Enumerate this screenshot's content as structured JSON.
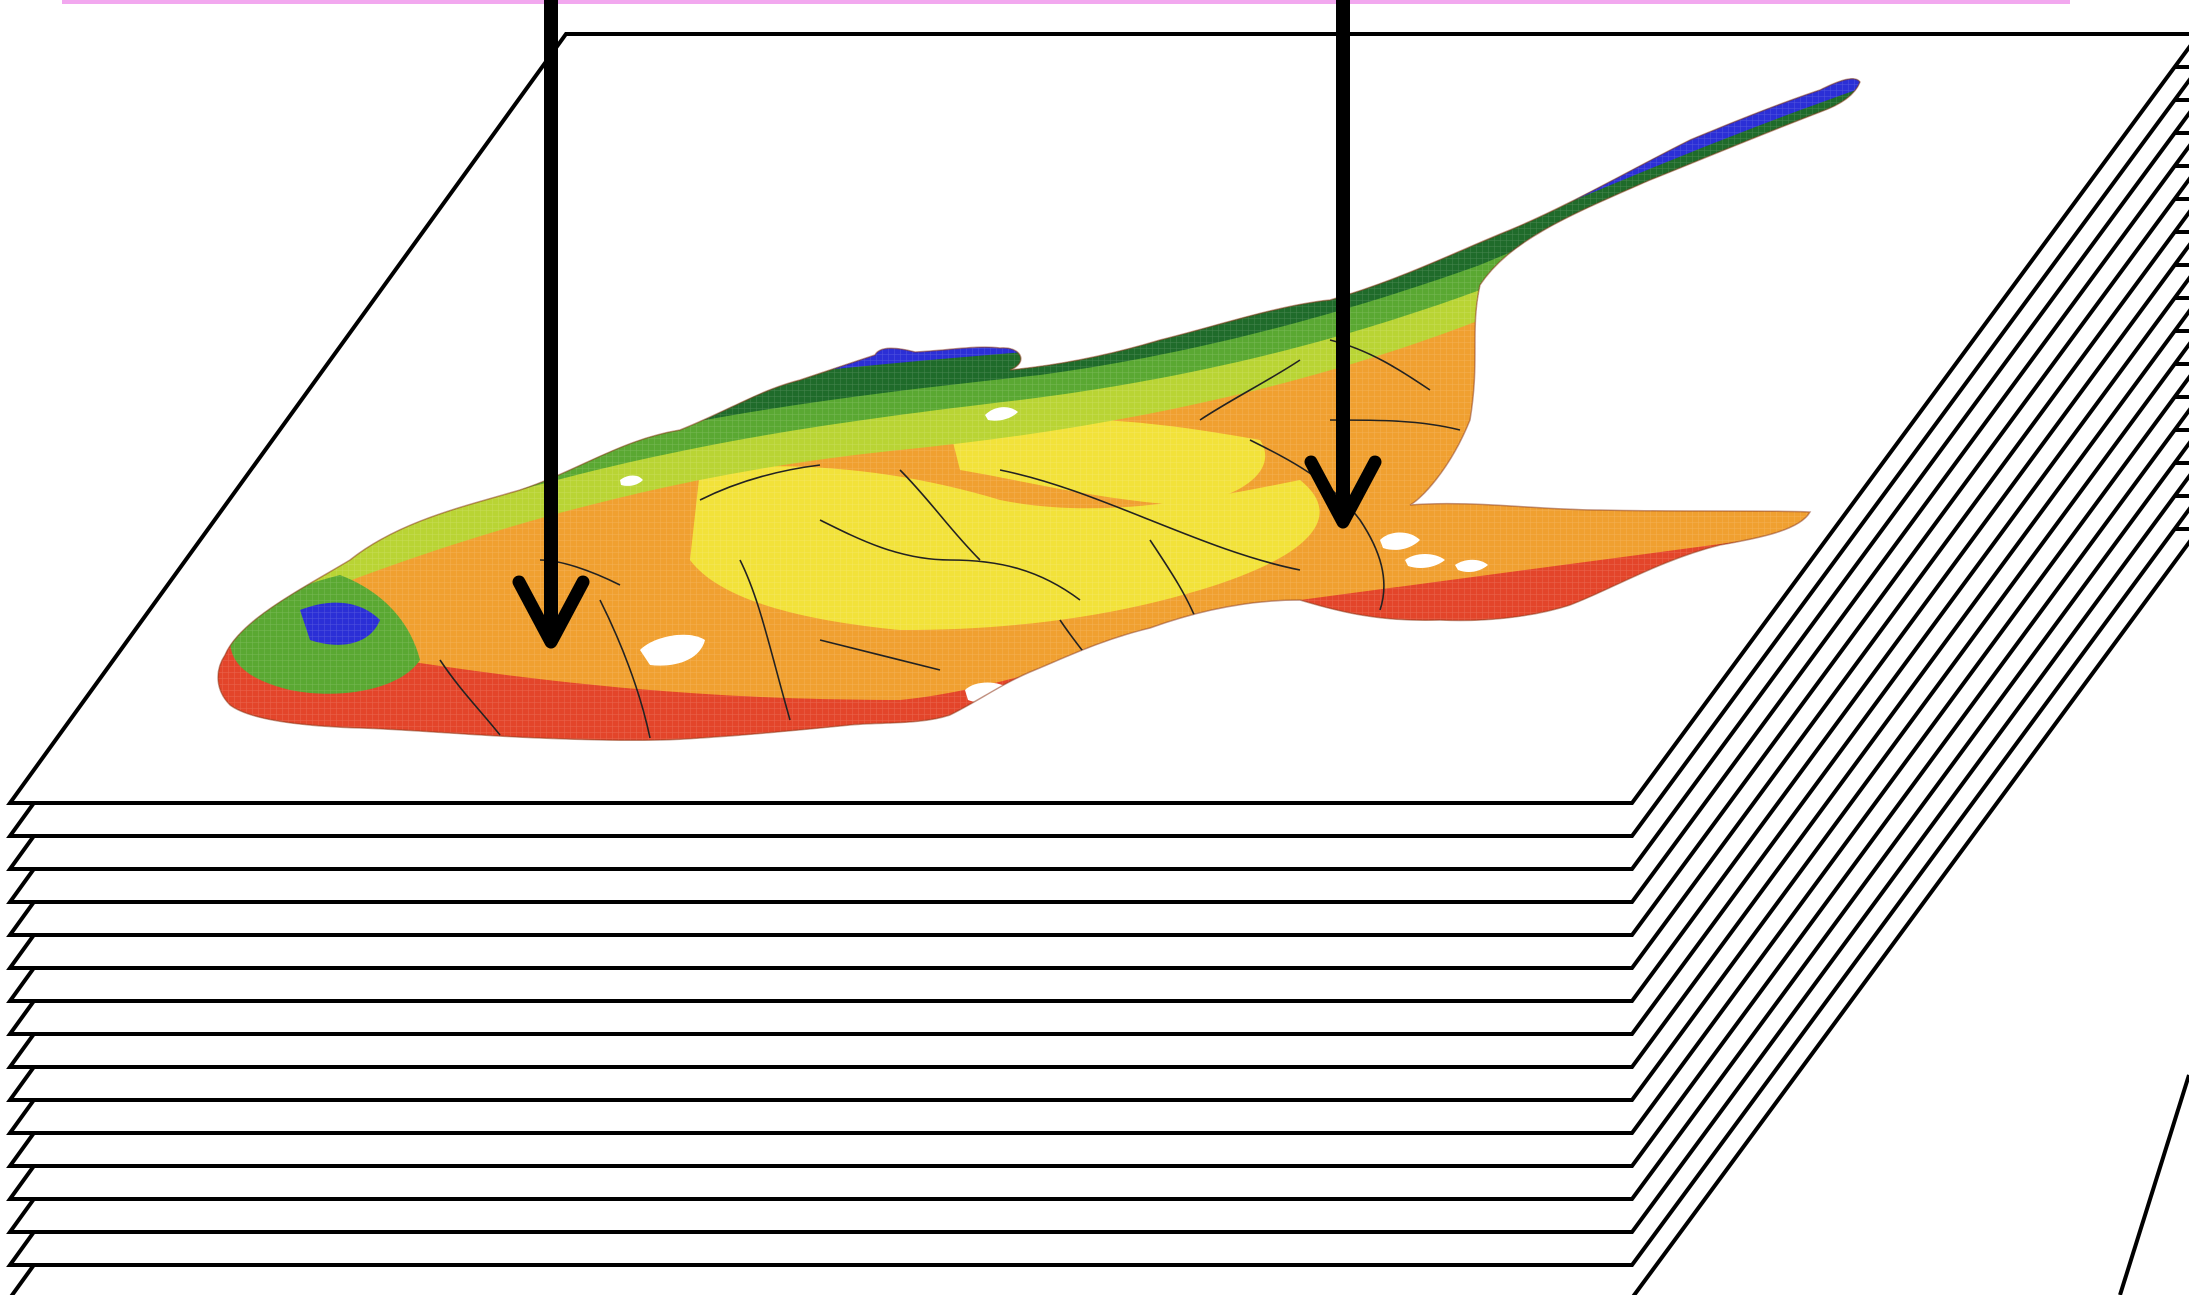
{
  "diagram": {
    "description_type": "stacked-map-layers",
    "layer_count": 16,
    "top_layer": {
      "content": "gridded-raster-map"
    },
    "arrows": [
      {
        "id": "left-arrow",
        "direction": "down"
      },
      {
        "id": "right-arrow",
        "direction": "down"
      }
    ],
    "colors": {
      "sheet_fill": "#ffffff",
      "sheet_stroke": "#000000",
      "arrow": "#000000",
      "top_bar": "#f2a8ef",
      "map_blue": "#2b2fd6",
      "map_dark_green": "#1f6b2a",
      "map_green": "#5aa832",
      "map_yellow_green": "#b9d434",
      "map_yellow": "#f2e23a",
      "map_orange": "#f0a030",
      "map_red": "#e3452a",
      "border": "#222222"
    }
  }
}
